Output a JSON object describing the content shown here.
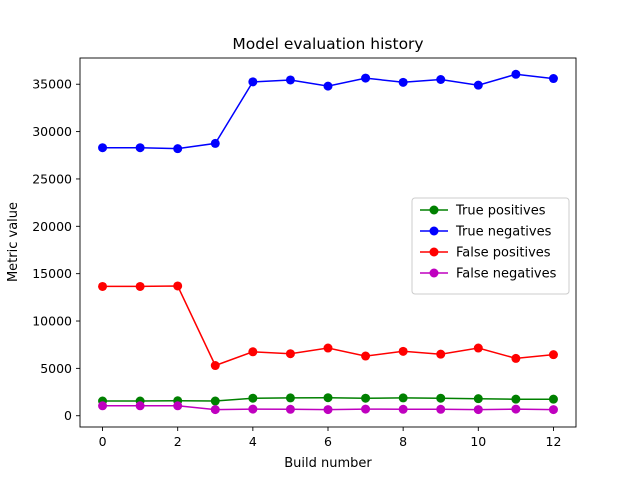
{
  "chart_data": {
    "type": "line",
    "title": "Model evaluation history",
    "xlabel": "Build number",
    "ylabel": "Metric value",
    "x": [
      0,
      1,
      2,
      3,
      4,
      5,
      6,
      7,
      8,
      9,
      10,
      11,
      12
    ],
    "xlim": [
      -0.6,
      12.6
    ],
    "ylim": [
      -1190,
      37770
    ],
    "xticks": [
      0,
      2,
      4,
      6,
      8,
      10,
      12
    ],
    "yticks": [
      0,
      5000,
      10000,
      15000,
      20000,
      25000,
      30000,
      35000
    ],
    "grid": false,
    "legend_position": "center-right",
    "series": [
      {
        "name": "True positives",
        "color": "#008000",
        "values": [
          1550,
          1550,
          1580,
          1550,
          1850,
          1880,
          1900,
          1850,
          1880,
          1850,
          1800,
          1750,
          1750
        ]
      },
      {
        "name": "True negatives",
        "color": "#0000ff",
        "values": [
          28300,
          28300,
          28200,
          28750,
          35250,
          35450,
          34800,
          35650,
          35200,
          35500,
          34900,
          36050,
          35600
        ]
      },
      {
        "name": "False positives",
        "color": "#ff0000",
        "values": [
          13650,
          13650,
          13700,
          5300,
          6750,
          6550,
          7150,
          6300,
          6800,
          6500,
          7150,
          6050,
          6450
        ]
      },
      {
        "name": "False negatives",
        "color": "#bf00bf",
        "values": [
          1050,
          1050,
          1050,
          650,
          700,
          680,
          650,
          700,
          680,
          680,
          650,
          700,
          650
        ]
      }
    ]
  }
}
